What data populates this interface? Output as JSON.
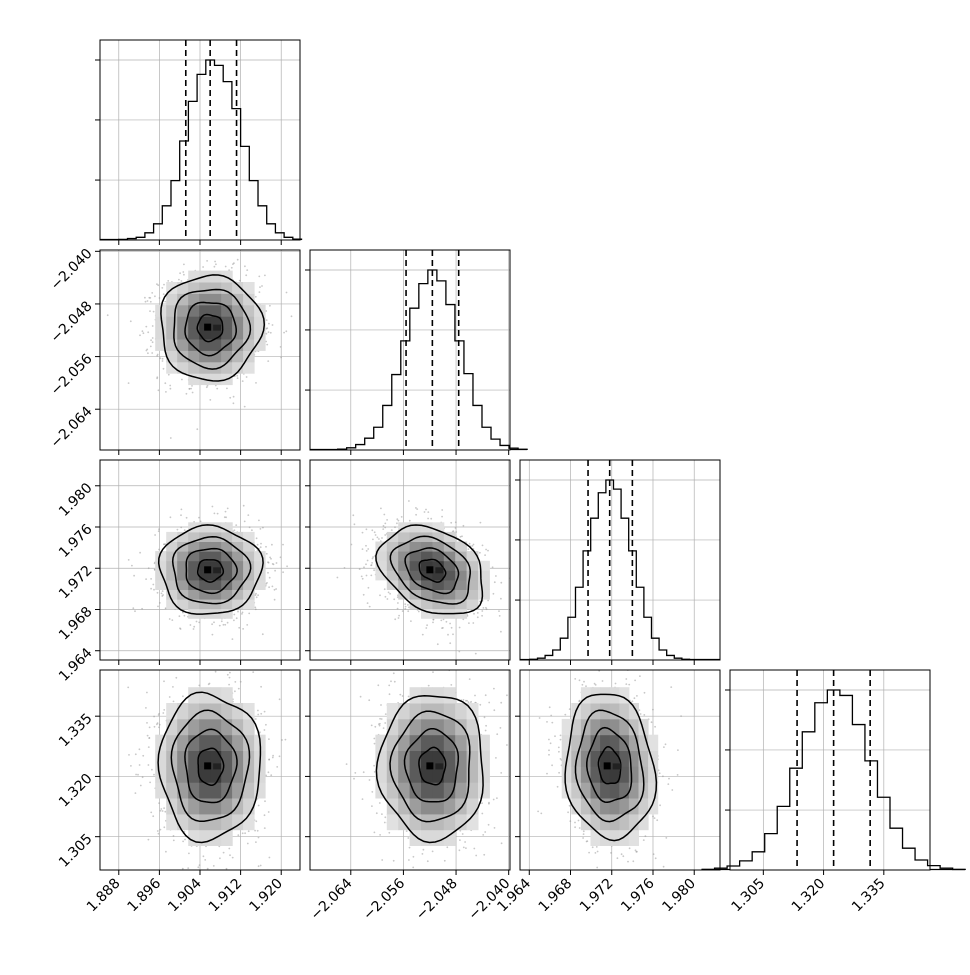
{
  "chart_data": {
    "type": "corner",
    "title": "",
    "colors": {
      "hist": "#000000",
      "points": "#9a9a9a",
      "grid": "#b0b0b0",
      "density_dark": "#2e2e2e",
      "density_light": "#f4f4f4"
    },
    "parameters": [
      {
        "median": 1.906,
        "q16": 1.9012,
        "q84": 1.9112,
        "range": [
          1.8843,
          1.9237
        ],
        "ticks": [
          1.888,
          1.896,
          1.904,
          1.912,
          1.92
        ],
        "tick_labels": [
          "1.888",
          "1.896",
          "1.904",
          "1.912",
          "1.920"
        ]
      },
      {
        "median": -2.0516,
        "q16": -2.0556,
        "q84": -2.0476,
        "range": [
          -2.0702,
          -2.0398
        ],
        "ticks": [
          -2.064,
          -2.056,
          -2.048,
          -2.04
        ],
        "tick_labels": [
          "−2.064",
          "−2.056",
          "−2.048",
          "−2.040"
        ]
      },
      {
        "median": 1.9718,
        "q16": 1.9697,
        "q84": 1.974,
        "range": [
          1.9631,
          1.9825
        ],
        "ticks": [
          1.964,
          1.968,
          1.972,
          1.976,
          1.98
        ],
        "tick_labels": [
          "1.964",
          "1.968",
          "1.972",
          "1.976",
          "1.980"
        ]
      },
      {
        "median": 1.3225,
        "q16": 1.3134,
        "q84": 1.3316,
        "range": [
          1.2967,
          1.3465
        ],
        "ticks": [
          1.305,
          1.32,
          1.335
        ],
        "tick_labels": [
          "1.305",
          "1.320",
          "1.335"
        ]
      }
    ],
    "diagonal_histograms": [
      [
        0.003,
        0.008,
        0.015,
        0.04,
        0.09,
        0.19,
        0.33,
        0.55,
        0.77,
        0.92,
        1.0,
        0.97,
        0.88,
        0.73,
        0.52,
        0.33,
        0.19,
        0.09,
        0.04,
        0.015,
        0.005
      ],
      [
        0.005,
        0.012,
        0.03,
        0.065,
        0.125,
        0.245,
        0.415,
        0.6,
        0.78,
        0.915,
        0.99,
        0.93,
        0.8,
        0.6,
        0.42,
        0.245,
        0.125,
        0.06,
        0.025,
        0.01,
        0.004
      ],
      [
        0.004,
        0.01,
        0.025,
        0.055,
        0.12,
        0.235,
        0.4,
        0.6,
        0.78,
        0.92,
        0.99,
        0.94,
        0.78,
        0.6,
        0.4,
        0.235,
        0.12,
        0.055,
        0.025,
        0.01,
        0.004
      ],
      [
        0.003,
        0.01,
        0.022,
        0.05,
        0.1,
        0.2,
        0.35,
        0.56,
        0.76,
        0.92,
        0.99,
        0.96,
        0.8,
        0.6,
        0.4,
        0.23,
        0.12,
        0.055,
        0.024,
        0.01,
        0.003
      ]
    ],
    "pairs": [
      {
        "row": 1,
        "col": 0,
        "correlation": 0.0
      },
      {
        "row": 2,
        "col": 0,
        "correlation": 0.0
      },
      {
        "row": 2,
        "col": 1,
        "correlation": -0.3
      },
      {
        "row": 3,
        "col": 0,
        "correlation": 0.0
      },
      {
        "row": 3,
        "col": 1,
        "correlation": 0.0
      },
      {
        "row": 3,
        "col": 2,
        "correlation": -0.1
      }
    ],
    "contour_sigma_levels": [
      0.5,
      1.0,
      1.5,
      2.0
    ],
    "quantile_lines": "dashed",
    "grid": true
  }
}
